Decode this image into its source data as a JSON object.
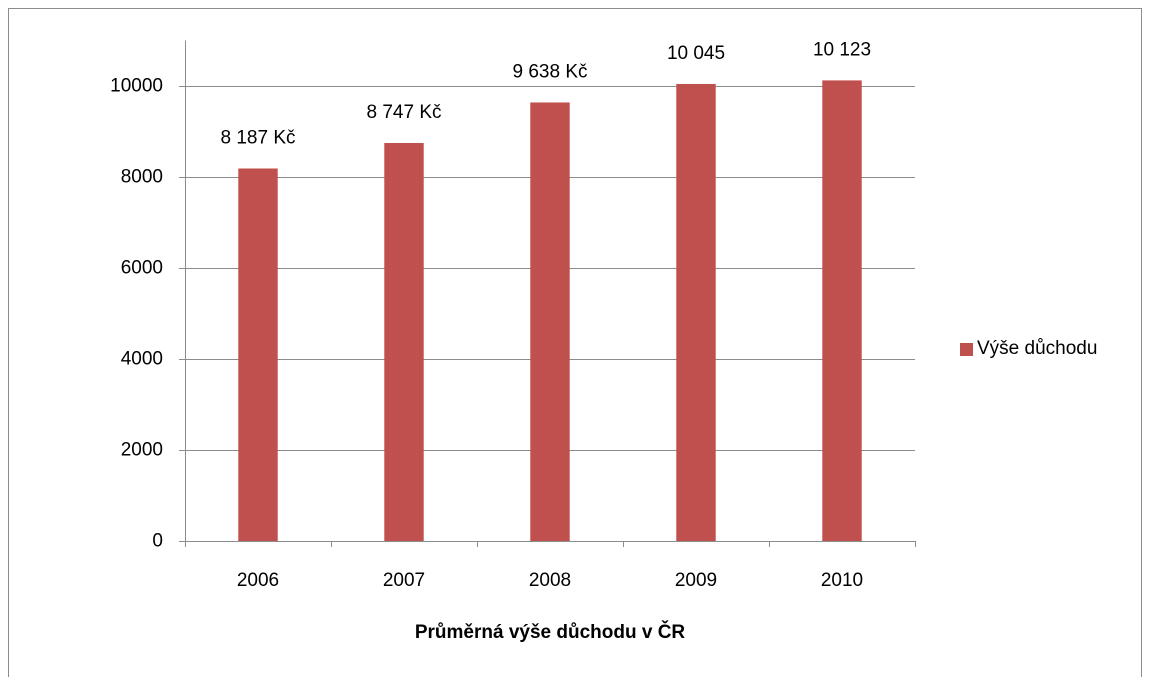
{
  "chart_data": {
    "type": "bar",
    "x_label": "Průměrná výše důchodu v ČR",
    "categories": [
      "2006",
      "2007",
      "2008",
      "2009",
      "2010"
    ],
    "series": [
      {
        "name": "Výše důchodu",
        "color": "#c0504d",
        "values": [
          8187,
          8747,
          9638,
          10045,
          10123
        ],
        "value_labels": [
          "8 187 Kč",
          "8 747 Kč",
          "9 638 Kč",
          "10 045",
          "10 123"
        ]
      }
    ],
    "ylim": [
      0,
      11000
    ],
    "yticks": [
      0,
      2000,
      4000,
      6000,
      8000,
      10000
    ],
    "grid": true,
    "legend": "right"
  }
}
